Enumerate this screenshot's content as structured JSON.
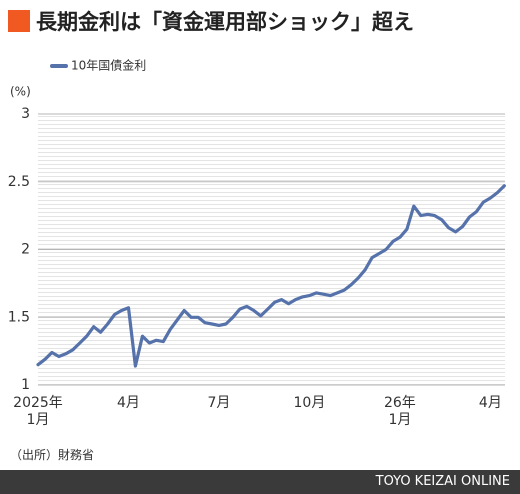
{
  "chart_data": {
    "type": "line",
    "title": "長期金利は「資金運用部ショック」超え",
    "y_unit": "(%)",
    "source": "（出所）財務省",
    "footer": "TOYO KEIZAI ONLINE",
    "categories": [
      "2025年\n1月",
      null,
      null,
      null,
      null,
      null,
      null,
      null,
      null,
      null,
      null,
      null,
      null,
      "4月",
      null,
      null,
      null,
      null,
      null,
      null,
      null,
      null,
      null,
      null,
      null,
      null,
      "7月",
      null,
      null,
      null,
      null,
      null,
      null,
      null,
      null,
      null,
      null,
      null,
      null,
      "10月",
      null,
      null,
      null,
      null,
      null,
      null,
      null,
      null,
      null,
      null,
      null,
      null,
      "26年\n1月",
      null,
      null,
      null,
      null,
      null,
      null,
      null,
      null,
      null,
      null,
      null,
      null,
      "4月",
      null,
      null
    ],
    "series": [
      {
        "name": "10年国債金利",
        "color": "#5672ab",
        "values": [
          1.15,
          1.19,
          1.24,
          1.21,
          1.23,
          1.26,
          1.31,
          1.36,
          1.43,
          1.39,
          1.45,
          1.52,
          1.55,
          1.57,
          1.14,
          1.36,
          1.31,
          1.33,
          1.32,
          1.41,
          1.48,
          1.55,
          1.5,
          1.5,
          1.46,
          1.45,
          1.44,
          1.45,
          1.5,
          1.56,
          1.58,
          1.55,
          1.51,
          1.56,
          1.61,
          1.63,
          1.6,
          1.63,
          1.65,
          1.66,
          1.68,
          1.67,
          1.66,
          1.68,
          1.7,
          1.74,
          1.79,
          1.85,
          1.94,
          1.97,
          2.0,
          2.06,
          2.09,
          2.15,
          2.32,
          2.25,
          2.26,
          2.25,
          2.22,
          2.16,
          2.13,
          2.17,
          2.24,
          2.28,
          2.35,
          2.38,
          2.42,
          2.47
        ]
      }
    ],
    "ylim": [
      1,
      3
    ],
    "yticks": [
      1,
      1.5,
      2,
      2.5,
      3
    ],
    "grid": true
  }
}
